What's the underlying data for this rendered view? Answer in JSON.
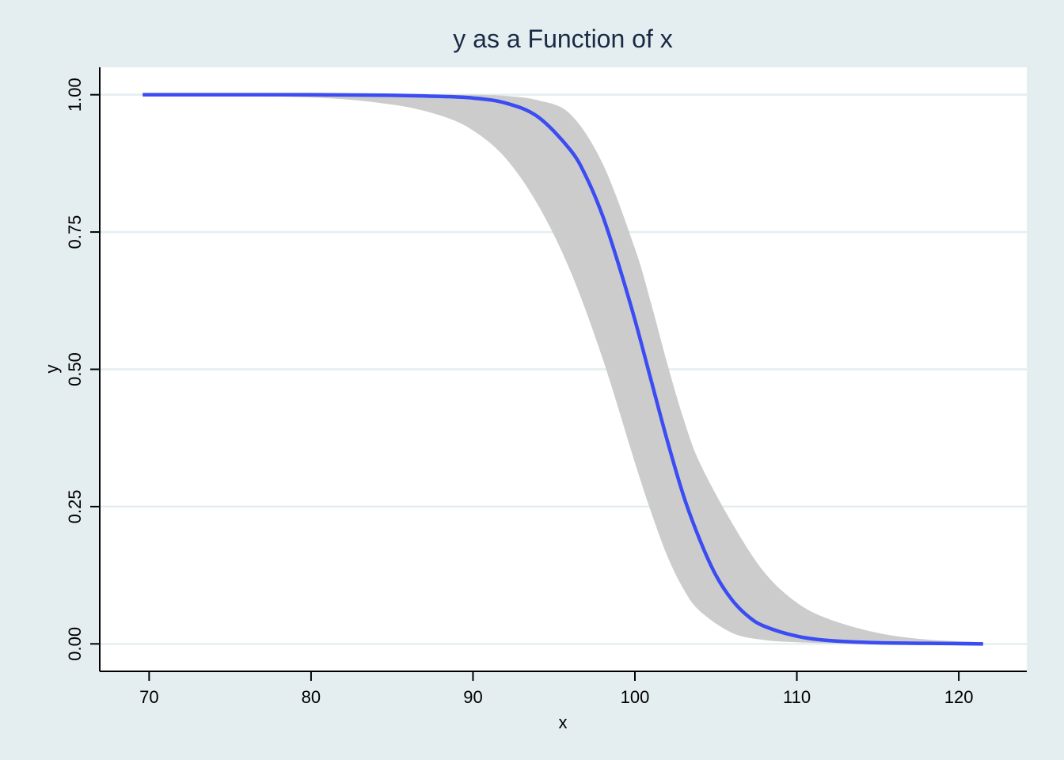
{
  "chart_data": {
    "type": "line",
    "title": "y as a Function of x",
    "xlabel": "x",
    "ylabel": "y",
    "xlim": [
      67,
      124.2
    ],
    "ylim": [
      -0.05,
      1.05
    ],
    "xticks": [
      70,
      80,
      90,
      100,
      110,
      120
    ],
    "xtick_labels": [
      "70",
      "80",
      "90",
      "100",
      "110",
      "120"
    ],
    "yticks": [
      0,
      0.25,
      0.5,
      0.75,
      1
    ],
    "ytick_labels": [
      "0.00",
      "0.25",
      "0.50",
      "0.75",
      "1.00"
    ],
    "grid": "horizontal",
    "legend": "none",
    "series": [
      {
        "kind": "band",
        "color": "#cccccc",
        "x": [
          69.6,
          80,
          85,
          88,
          90,
          92,
          94,
          96,
          98,
          100,
          101,
          102,
          103,
          104,
          106,
          108,
          110,
          112,
          115,
          118,
          121.5
        ],
        "lower": [
          1.0,
          0.995,
          0.982,
          0.962,
          0.935,
          0.885,
          0.8,
          0.68,
          0.52,
          0.33,
          0.24,
          0.16,
          0.1,
          0.06,
          0.02,
          0.007,
          0.003,
          0.001,
          0.0,
          0.0,
          0.0
        ],
        "upper": [
          1.0,
          1.0,
          1.0,
          1.0,
          1.0,
          0.998,
          0.99,
          0.965,
          0.875,
          0.72,
          0.62,
          0.51,
          0.41,
          0.33,
          0.22,
          0.13,
          0.075,
          0.045,
          0.02,
          0.008,
          0.003
        ]
      },
      {
        "kind": "line",
        "color": "#3b4cf2",
        "x": [
          69.6,
          80,
          85,
          88,
          90,
          92,
          94,
          96,
          97,
          98,
          99,
          100,
          101,
          102,
          103,
          104,
          105,
          106,
          107,
          108,
          110,
          112,
          115,
          118,
          121.5
        ],
        "y": [
          1.0,
          1.0,
          0.999,
          0.997,
          0.994,
          0.985,
          0.96,
          0.9,
          0.85,
          0.78,
          0.69,
          0.59,
          0.48,
          0.37,
          0.27,
          0.19,
          0.125,
          0.08,
          0.05,
          0.032,
          0.014,
          0.006,
          0.002,
          0.001,
          0.0
        ]
      }
    ]
  }
}
